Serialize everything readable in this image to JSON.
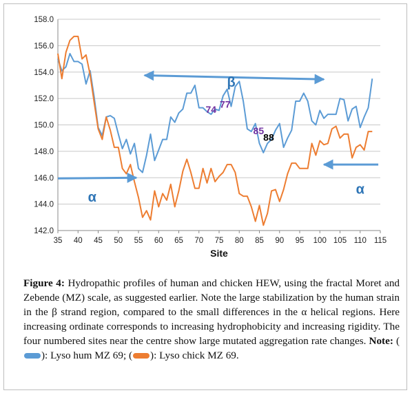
{
  "chart_data": {
    "type": "line",
    "xlabel": "Site",
    "ylabel": "",
    "xlim": [
      35,
      115
    ],
    "ylim": [
      142.0,
      158.0
    ],
    "xticks": [
      "35",
      "40",
      "45",
      "50",
      "55",
      "60",
      "65",
      "70",
      "75",
      "80",
      "85",
      "90",
      "95",
      "100",
      "105",
      "110",
      "115"
    ],
    "yticks": [
      "142.0",
      "144.0",
      "146.0",
      "148.0",
      "150.0",
      "152.0",
      "154.0",
      "156.0",
      "158.0"
    ],
    "grid": "horizontal",
    "series": [
      {
        "name": "Lyso hum MZ 69",
        "color": "#5b9bd5",
        "x": [
          35,
          36,
          37,
          38,
          39,
          40,
          41,
          42,
          43,
          44,
          45,
          46,
          47,
          48,
          49,
          50,
          51,
          52,
          53,
          54,
          55,
          56,
          57,
          58,
          59,
          60,
          61,
          62,
          63,
          64,
          65,
          66,
          67,
          68,
          69,
          70,
          71,
          72,
          73,
          74,
          75,
          76,
          77,
          78,
          79,
          80,
          81,
          82,
          83,
          84,
          85,
          86,
          87,
          88,
          89,
          90,
          91,
          92,
          93,
          94,
          95,
          96,
          97,
          98,
          99,
          100,
          101,
          102,
          103,
          104,
          105,
          106,
          107,
          108,
          109,
          110,
          111,
          112,
          113
        ],
        "y": [
          155.0,
          154.1,
          154.4,
          155.4,
          154.8,
          154.8,
          154.6,
          153.1,
          154.1,
          152.1,
          149.8,
          149.2,
          150.6,
          150.7,
          150.5,
          149.3,
          148.2,
          148.9,
          147.8,
          148.6,
          146.7,
          146.4,
          147.7,
          149.3,
          147.3,
          148.1,
          148.9,
          148.9,
          150.6,
          150.2,
          150.9,
          151.2,
          152.4,
          152.4,
          153.0,
          151.3,
          151.3,
          151.0,
          150.8,
          151.2,
          151.1,
          152.2,
          152.7,
          151.4,
          152.9,
          153.3,
          151.8,
          149.7,
          149.5,
          150.1,
          148.6,
          147.9,
          148.6,
          148.9,
          149.6,
          150.1,
          148.3,
          149.0,
          149.6,
          151.8,
          151.8,
          152.4,
          151.8,
          150.3,
          150.0,
          151.1,
          150.5,
          150.8,
          150.8,
          150.8,
          152.0,
          151.9,
          150.3,
          151.2,
          151.4,
          149.8,
          150.6,
          151.3,
          153.5
        ]
      },
      {
        "name": "Lyso chick MZ 69",
        "color": "#ed7d31",
        "x": [
          35,
          36,
          37,
          38,
          39,
          40,
          41,
          42,
          43,
          44,
          45,
          46,
          47,
          48,
          49,
          50,
          51,
          52,
          53,
          54,
          55,
          56,
          57,
          58,
          59,
          60,
          61,
          62,
          63,
          64,
          65,
          66,
          67,
          68,
          69,
          70,
          71,
          72,
          73,
          74,
          75,
          76,
          77,
          78,
          79,
          80,
          81,
          82,
          83,
          84,
          85,
          86,
          87,
          88,
          89,
          90,
          91,
          92,
          93,
          94,
          95,
          96,
          97,
          98,
          99,
          100,
          101,
          102,
          103,
          104,
          105,
          106,
          107,
          108,
          109,
          110,
          111,
          112,
          113
        ],
        "y": [
          155.4,
          153.5,
          155.5,
          156.4,
          156.7,
          156.7,
          155.0,
          155.3,
          153.8,
          151.7,
          149.7,
          148.9,
          150.6,
          149.6,
          148.3,
          148.3,
          146.7,
          146.3,
          147.0,
          145.7,
          144.5,
          143.0,
          143.5,
          142.8,
          145.0,
          143.8,
          144.8,
          144.3,
          145.5,
          143.8,
          145.0,
          146.5,
          147.4,
          146.4,
          145.2,
          145.2,
          146.7,
          145.6,
          146.7,
          145.7,
          146.1,
          146.4,
          147.0,
          147.0,
          146.4,
          144.8,
          144.6,
          144.6,
          143.8,
          142.7,
          143.9,
          142.4,
          143.3,
          145.0,
          145.1,
          144.2,
          145.1,
          146.3,
          147.1,
          147.1,
          146.7,
          146.7,
          146.7,
          148.6,
          147.7,
          148.8,
          148.5,
          148.6,
          149.7,
          149.9,
          149.0,
          149.3,
          149.3,
          147.5,
          148.3,
          148.5,
          148.1,
          149.5,
          149.5
        ]
      }
    ],
    "annotations": [
      {
        "text": "β",
        "color": "#2e75b6"
      },
      {
        "text": "α",
        "color": "#2e75b6"
      },
      {
        "text": "α",
        "color": "#2e75b6"
      },
      {
        "text": "74",
        "color": "#7030a0",
        "x": 73,
        "y": 150.9
      },
      {
        "text": "77",
        "color": "#7030a0",
        "x": 76.5,
        "y": 151.3
      },
      {
        "text": "85",
        "color": "#7030a0",
        "x": 84.8,
        "y": 149.3
      },
      {
        "text": "88",
        "color": "#000000",
        "x": 87.3,
        "y": 148.8
      }
    ],
    "arrows": [
      {
        "from": [
          56.5,
          153.75
        ],
        "to": [
          101,
          153.45
        ],
        "head": "both"
      },
      {
        "from": [
          35,
          145.95
        ],
        "to": [
          54.5,
          146.0
        ],
        "head": "end"
      },
      {
        "from": [
          114.5,
          147.0
        ],
        "to": [
          101,
          147.0
        ],
        "head": "end"
      }
    ]
  },
  "caption": {
    "label": "Figure 4:",
    "text": "Hydropathic profiles of human and chicken HEW, using the fractal Moret and Zebende (MZ) scale, as suggested earlier. Note the large stabilization by the human strain in the β strand region, compared to the small differences in the α helical regions. Here increasing ordinate corresponds to increasing hydrophobicity and increasing rigidity. The four numbered sites near the centre show large mutated aggregation rate changes.",
    "note_label": "Note:",
    "legend_open_1": "(",
    "legend_human": "): Lyso hum MZ 69; (",
    "legend_chick": "): Lyso chick MZ 69."
  }
}
